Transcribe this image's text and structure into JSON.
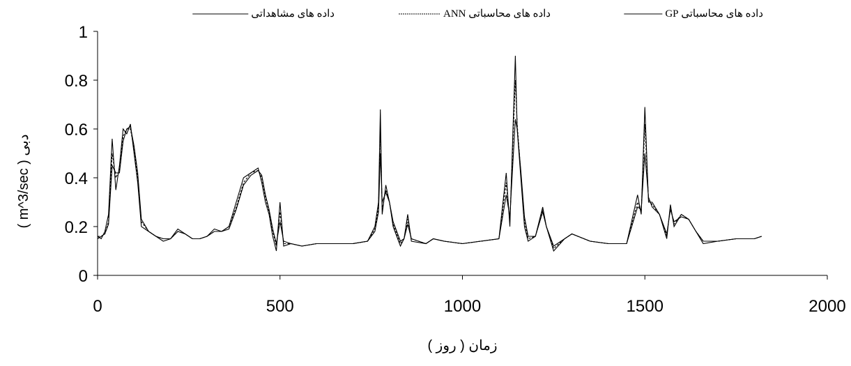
{
  "chart_data": {
    "type": "line",
    "xlabel": "زمان ( روز )",
    "ylabel": "دبی ( m^3/sec )",
    "xlim": [
      0,
      2000
    ],
    "xticks": [
      0,
      500,
      1000,
      1500,
      2000
    ],
    "ylim": [
      0,
      1
    ],
    "yticks": [
      0,
      0.2,
      0.4,
      0.6,
      0.8,
      1
    ],
    "x": [
      0,
      10,
      20,
      30,
      40,
      50,
      60,
      70,
      80,
      90,
      100,
      110,
      120,
      140,
      160,
      180,
      200,
      220,
      240,
      260,
      280,
      300,
      320,
      340,
      360,
      380,
      400,
      420,
      440,
      450,
      460,
      470,
      480,
      490,
      500,
      510,
      530,
      560,
      600,
      650,
      700,
      740,
      760,
      770,
      775,
      780,
      790,
      800,
      810,
      820,
      830,
      840,
      850,
      860,
      900,
      920,
      950,
      1000,
      1050,
      1100,
      1120,
      1130,
      1145,
      1150,
      1160,
      1170,
      1180,
      1200,
      1220,
      1230,
      1250,
      1280,
      1300,
      1350,
      1400,
      1450,
      1480,
      1490,
      1500,
      1510,
      1520,
      1540,
      1560,
      1570,
      1580,
      1600,
      1620,
      1640,
      1660,
      1700,
      1750,
      1800,
      1820
    ],
    "series": [
      {
        "name": "داده های مشاهداتی",
        "color": "#000000",
        "line_style": "solid",
        "values": [
          0.16,
          0.15,
          0.18,
          0.25,
          0.56,
          0.35,
          0.45,
          0.6,
          0.58,
          0.62,
          0.5,
          0.38,
          0.2,
          0.18,
          0.16,
          0.14,
          0.15,
          0.19,
          0.17,
          0.15,
          0.15,
          0.16,
          0.19,
          0.18,
          0.2,
          0.3,
          0.4,
          0.42,
          0.44,
          0.38,
          0.3,
          0.25,
          0.16,
          0.1,
          0.3,
          0.12,
          0.13,
          0.12,
          0.13,
          0.13,
          0.13,
          0.14,
          0.2,
          0.3,
          0.68,
          0.25,
          0.37,
          0.3,
          0.2,
          0.16,
          0.12,
          0.15,
          0.25,
          0.14,
          0.13,
          0.15,
          0.14,
          0.13,
          0.14,
          0.15,
          0.42,
          0.2,
          0.9,
          0.6,
          0.4,
          0.2,
          0.14,
          0.16,
          0.28,
          0.2,
          0.1,
          0.15,
          0.17,
          0.14,
          0.13,
          0.13,
          0.33,
          0.25,
          0.69,
          0.3,
          0.3,
          0.25,
          0.15,
          0.29,
          0.2,
          0.25,
          0.23,
          0.18,
          0.13,
          0.14,
          0.15,
          0.15,
          0.16
        ]
      },
      {
        "name": "داده های محاسباتی ANN",
        "color": "#000000",
        "line_style": "dashed",
        "values": [
          0.16,
          0.16,
          0.17,
          0.22,
          0.5,
          0.4,
          0.43,
          0.57,
          0.6,
          0.6,
          0.52,
          0.4,
          0.22,
          0.18,
          0.16,
          0.15,
          0.15,
          0.18,
          0.17,
          0.15,
          0.15,
          0.16,
          0.18,
          0.18,
          0.2,
          0.28,
          0.38,
          0.42,
          0.43,
          0.4,
          0.32,
          0.26,
          0.18,
          0.12,
          0.26,
          0.13,
          0.13,
          0.12,
          0.13,
          0.13,
          0.13,
          0.14,
          0.19,
          0.28,
          0.6,
          0.27,
          0.35,
          0.3,
          0.21,
          0.17,
          0.13,
          0.15,
          0.23,
          0.15,
          0.13,
          0.15,
          0.14,
          0.13,
          0.14,
          0.15,
          0.38,
          0.22,
          0.8,
          0.62,
          0.42,
          0.22,
          0.15,
          0.16,
          0.27,
          0.2,
          0.11,
          0.15,
          0.17,
          0.14,
          0.13,
          0.13,
          0.3,
          0.26,
          0.62,
          0.31,
          0.29,
          0.25,
          0.16,
          0.28,
          0.21,
          0.25,
          0.23,
          0.18,
          0.14,
          0.14,
          0.15,
          0.15,
          0.16
        ]
      },
      {
        "name": "داده های محاسباتی GP",
        "color": "#000000",
        "line_style": "solid",
        "values": [
          0.15,
          0.16,
          0.17,
          0.21,
          0.45,
          0.42,
          0.42,
          0.55,
          0.6,
          0.61,
          0.53,
          0.42,
          0.23,
          0.18,
          0.16,
          0.15,
          0.15,
          0.18,
          0.17,
          0.15,
          0.15,
          0.16,
          0.18,
          0.18,
          0.19,
          0.27,
          0.37,
          0.41,
          0.43,
          0.41,
          0.33,
          0.27,
          0.19,
          0.13,
          0.22,
          0.14,
          0.13,
          0.12,
          0.13,
          0.13,
          0.13,
          0.14,
          0.18,
          0.26,
          0.5,
          0.3,
          0.34,
          0.3,
          0.22,
          0.18,
          0.14,
          0.15,
          0.21,
          0.15,
          0.13,
          0.15,
          0.14,
          0.13,
          0.14,
          0.15,
          0.33,
          0.24,
          0.64,
          0.6,
          0.43,
          0.24,
          0.16,
          0.16,
          0.26,
          0.2,
          0.12,
          0.15,
          0.17,
          0.14,
          0.13,
          0.13,
          0.28,
          0.27,
          0.5,
          0.32,
          0.28,
          0.25,
          0.17,
          0.27,
          0.22,
          0.24,
          0.23,
          0.18,
          0.14,
          0.14,
          0.15,
          0.15,
          0.16
        ]
      }
    ]
  }
}
